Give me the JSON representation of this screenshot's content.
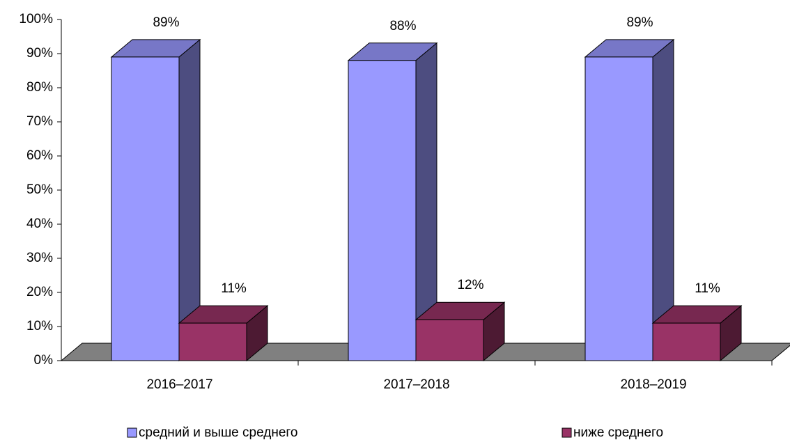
{
  "chart_data": {
    "type": "bar3d",
    "categories": [
      "2016–2017",
      "2017–2018",
      "2018–2019"
    ],
    "series": [
      {
        "name": "средний и выше среднего",
        "color": "#9999ff",
        "values": [
          89,
          88,
          89
        ],
        "value_labels": [
          "89%",
          "88%",
          "89%"
        ]
      },
      {
        "name": "ниже среднего",
        "color": "#993366",
        "values": [
          11,
          12,
          11
        ],
        "value_labels": [
          "11%",
          "12%",
          "11%"
        ]
      }
    ],
    "ylim": [
      0,
      100
    ],
    "yticks": [
      {
        "value": 0,
        "label": "0%"
      },
      {
        "value": 10,
        "label": "10%"
      },
      {
        "value": 20,
        "label": "20%"
      },
      {
        "value": 30,
        "label": "30%"
      },
      {
        "value": 40,
        "label": "40%"
      },
      {
        "value": 50,
        "label": "50%"
      },
      {
        "value": 60,
        "label": "60%"
      },
      {
        "value": 70,
        "label": "70%"
      },
      {
        "value": 80,
        "label": "80%"
      },
      {
        "value": 90,
        "label": "90%"
      },
      {
        "value": 100,
        "label": "100%"
      }
    ],
    "legend": "bottom"
  }
}
